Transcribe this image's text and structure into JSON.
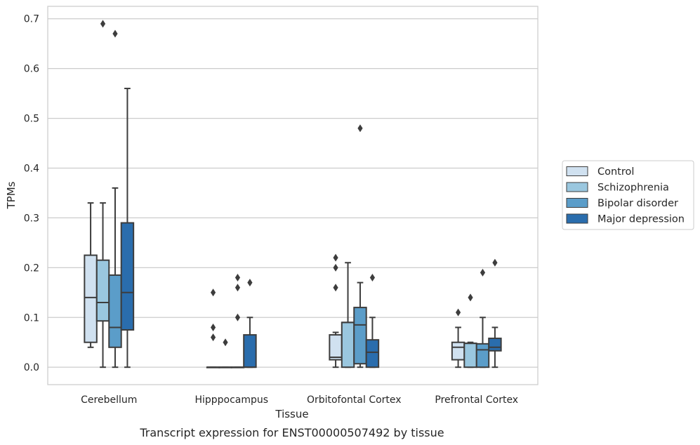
{
  "chart_data": {
    "type": "box",
    "caption": "Transcript expression for ENST00000507492 by tissue",
    "xlabel": "Tissue",
    "ylabel": "TPMs",
    "ylim": [
      -0.035,
      0.725
    ],
    "yticks": [
      0.0,
      0.1,
      0.2,
      0.3,
      0.4,
      0.5,
      0.6,
      0.7
    ],
    "ytick_labels": [
      "0.0",
      "0.1",
      "0.2",
      "0.3",
      "0.4",
      "0.5",
      "0.6",
      "0.7"
    ],
    "grid": "horizontal",
    "legend_position": "right",
    "categories": [
      "Cerebellum",
      "Hipppocampus",
      "Orbitofontal Cortex",
      "Prefrontal Cortex"
    ],
    "series": [
      {
        "name": "Control",
        "color": "#d0e1f0",
        "boxes": [
          {
            "whisker_low": 0.04,
            "q1": 0.05,
            "median": 0.14,
            "q3": 0.225,
            "whisker_high": 0.33,
            "outliers": []
          },
          {
            "whisker_low": 0.0,
            "q1": 0.0,
            "median": 0.0,
            "q3": 0.0,
            "whisker_high": 0.0,
            "outliers": [
              0.15,
              0.08,
              0.06
            ]
          },
          {
            "whisker_low": 0.0,
            "q1": 0.015,
            "median": 0.02,
            "q3": 0.065,
            "whisker_high": 0.07,
            "outliers": [
              0.22,
              0.2,
              0.16
            ]
          },
          {
            "whisker_low": 0.0,
            "q1": 0.015,
            "median": 0.04,
            "q3": 0.05,
            "whisker_high": 0.08,
            "outliers": [
              0.11
            ]
          }
        ]
      },
      {
        "name": "Schizophrenia",
        "color": "#9ac7df",
        "boxes": [
          {
            "whisker_low": 0.0,
            "q1": 0.093,
            "median": 0.13,
            "q3": 0.215,
            "whisker_high": 0.33,
            "outliers": [
              0.69
            ]
          },
          {
            "whisker_low": 0.0,
            "q1": 0.0,
            "median": 0.0,
            "q3": 0.0,
            "whisker_high": 0.0,
            "outliers": [
              0.05
            ]
          },
          {
            "whisker_low": 0.0,
            "q1": 0.0,
            "median": 0.09,
            "q3": 0.09,
            "whisker_high": 0.21,
            "outliers": []
          },
          {
            "whisker_low": 0.0,
            "q1": 0.0,
            "median": 0.048,
            "q3": 0.048,
            "whisker_high": 0.05,
            "outliers": [
              0.14
            ]
          }
        ]
      },
      {
        "name": "Bipolar disorder",
        "color": "#5b9dc9",
        "boxes": [
          {
            "whisker_low": 0.0,
            "q1": 0.04,
            "median": 0.08,
            "q3": 0.185,
            "whisker_high": 0.36,
            "outliers": [
              0.67
            ]
          },
          {
            "whisker_low": 0.0,
            "q1": 0.0,
            "median": 0.0,
            "q3": 0.0,
            "whisker_high": 0.0,
            "outliers": [
              0.18,
              0.16,
              0.1
            ]
          },
          {
            "whisker_low": 0.0,
            "q1": 0.007,
            "median": 0.085,
            "q3": 0.12,
            "whisker_high": 0.17,
            "outliers": [
              0.48
            ]
          },
          {
            "whisker_low": 0.0,
            "q1": 0.0,
            "median": 0.035,
            "q3": 0.047,
            "whisker_high": 0.1,
            "outliers": [
              0.19
            ]
          }
        ]
      },
      {
        "name": "Major depression",
        "color": "#2a6dad",
        "boxes": [
          {
            "whisker_low": 0.0,
            "q1": 0.075,
            "median": 0.15,
            "q3": 0.29,
            "whisker_high": 0.56,
            "outliers": []
          },
          {
            "whisker_low": 0.0,
            "q1": 0.0,
            "median": 0.0,
            "q3": 0.065,
            "whisker_high": 0.1,
            "outliers": [
              0.17
            ]
          },
          {
            "whisker_low": 0.0,
            "q1": 0.0,
            "median": 0.03,
            "q3": 0.055,
            "whisker_high": 0.1,
            "outliers": [
              0.18
            ]
          },
          {
            "whisker_low": 0.0,
            "q1": 0.033,
            "median": 0.04,
            "q3": 0.058,
            "whisker_high": 0.08,
            "outliers": [
              0.21
            ]
          }
        ]
      }
    ]
  }
}
